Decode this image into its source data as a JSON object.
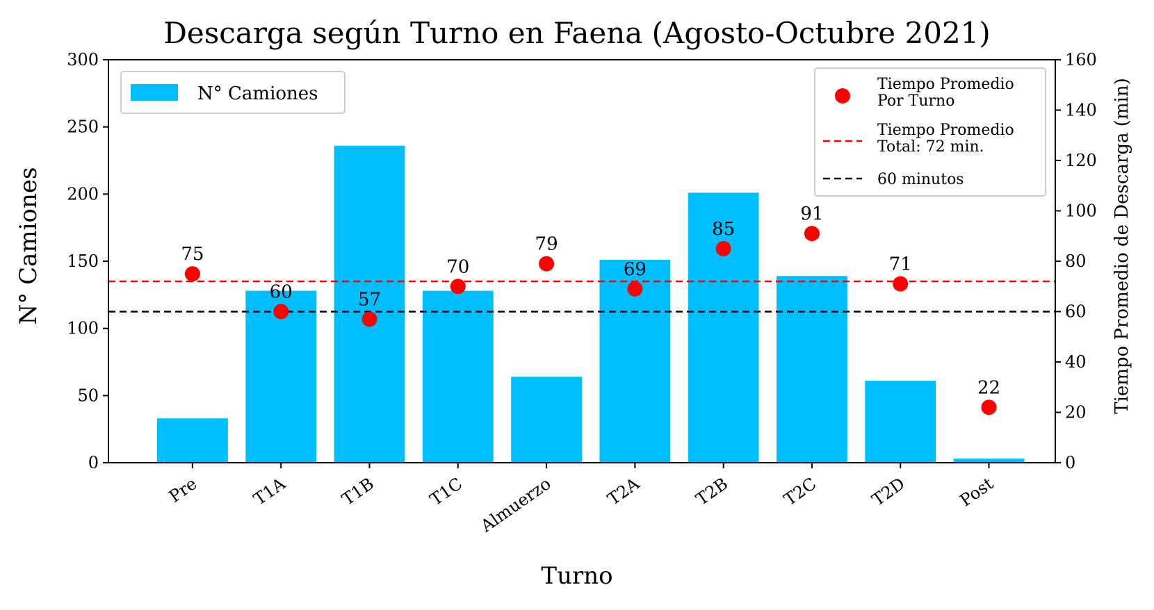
{
  "chart_data": {
    "type": "bar",
    "title": "Descarga según Turno en Faena (Agosto-Octubre 2021)",
    "xlabel": "Turno",
    "ylabel": "N° Camiones",
    "ylabel_right": "Tiempo Promedio de Descarga (min)",
    "categories": [
      "Pre",
      "T1A",
      "T1B",
      "T1C",
      "Almuerzo",
      "T2A",
      "T2B",
      "T2C",
      "T2D",
      "Post"
    ],
    "ylim": [
      0,
      300
    ],
    "yticks": [
      0,
      50,
      100,
      150,
      200,
      250,
      300
    ],
    "ylim_right": [
      0,
      160
    ],
    "yticks_right": [
      0,
      20,
      40,
      60,
      80,
      100,
      120,
      140,
      160
    ],
    "series": [
      {
        "name": "N° Camiones",
        "axis": "left",
        "kind": "bar",
        "color": "#00bfff",
        "values": [
          33,
          128,
          236,
          128,
          64,
          151,
          201,
          139,
          61,
          3
        ]
      },
      {
        "name": "Tiempo Promedio\nPor Turno",
        "axis": "right",
        "kind": "scatter",
        "color": "#ff0000",
        "values": [
          75,
          60,
          57,
          70,
          79,
          69,
          85,
          91,
          71,
          22
        ],
        "labels": [
          "75",
          "60",
          "57",
          "70",
          "79",
          "69",
          "85",
          "91",
          "71",
          "22"
        ]
      }
    ],
    "reference_lines": [
      {
        "name": "Tiempo Promedio\nTotal: 72 min.",
        "axis": "right",
        "value": 72,
        "color": "#ff0000",
        "style": "dashed"
      },
      {
        "name": "60 minutos",
        "axis": "right",
        "value": 60,
        "color": "#000000",
        "style": "dashed"
      }
    ],
    "legend_left": "top-left",
    "legend_right": "top-right",
    "grid": false
  }
}
